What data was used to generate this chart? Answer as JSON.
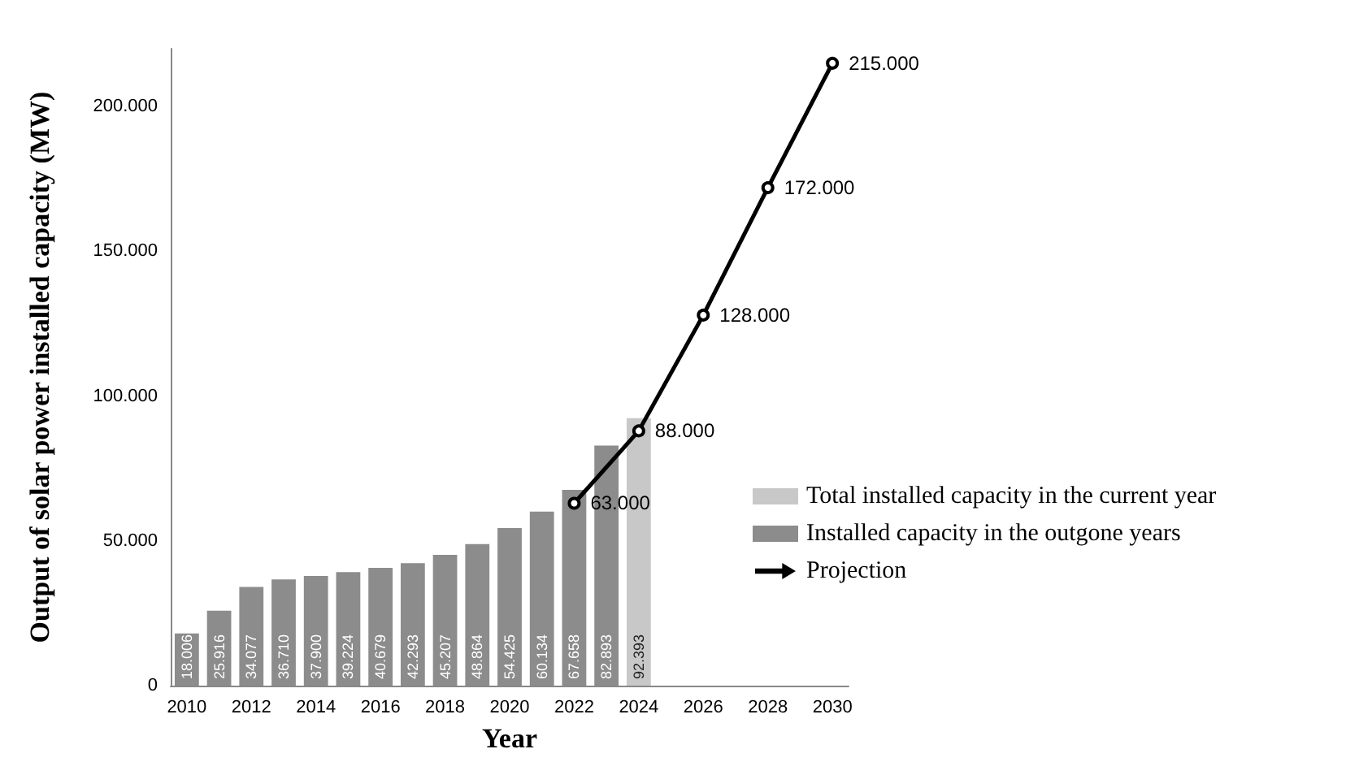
{
  "chart_data": {
    "type": "bar",
    "xlabel": "Year",
    "ylabel": "Output of solar power installed capacity (MW)",
    "categories": [
      "2010",
      null,
      "2012",
      null,
      "2014",
      null,
      "2016",
      null,
      "2018",
      null,
      "2020",
      null,
      "2022",
      null,
      "2024",
      null,
      "2026",
      null,
      "2028",
      null,
      "2030"
    ],
    "series": [
      {
        "name": "Total installed capacity in the current year",
        "color": "#c8c8c8",
        "values": [
          null,
          null,
          null,
          null,
          null,
          null,
          null,
          null,
          null,
          null,
          null,
          null,
          null,
          null,
          92393,
          null,
          null,
          null,
          null,
          null,
          null
        ],
        "value_labels": [
          null,
          null,
          null,
          null,
          null,
          null,
          null,
          null,
          null,
          null,
          null,
          null,
          null,
          null,
          "92.393",
          null,
          null,
          null,
          null,
          null,
          null
        ]
      },
      {
        "name": "Installed capacity in the outgone years",
        "color": "#8c8c8c",
        "values": [
          18006,
          25916,
          34077,
          36710,
          37900,
          39224,
          40679,
          42293,
          45207,
          48864,
          54425,
          60134,
          67658,
          82893,
          null,
          null,
          null,
          null,
          null,
          null,
          null
        ],
        "value_labels": [
          "18.006",
          "25.916",
          "34.077",
          "36.710",
          "37.900",
          "39.224",
          "40.679",
          "42.293",
          "45.207",
          "48.864",
          "54.425",
          "60.134",
          "67.658",
          "82.893",
          null,
          null,
          null,
          null,
          null,
          null,
          null
        ]
      },
      {
        "name": "Projection",
        "type": "line",
        "color": "#000000",
        "values": [
          null,
          null,
          null,
          null,
          null,
          null,
          null,
          null,
          null,
          null,
          null,
          null,
          63000,
          null,
          88000,
          null,
          128000,
          null,
          172000,
          null,
          215000
        ],
        "value_labels": [
          null,
          null,
          null,
          null,
          null,
          null,
          null,
          null,
          null,
          null,
          null,
          null,
          "63.000",
          null,
          "88.000",
          null,
          "128.000",
          null,
          "172.000",
          null,
          "215.000"
        ]
      }
    ],
    "ylim": [
      0,
      220000
    ],
    "yticks": [
      {
        "value": 0,
        "label": "0"
      },
      {
        "value": 50000,
        "label": "50.000"
      },
      {
        "value": 100000,
        "label": "100.000"
      },
      {
        "value": 150000,
        "label": "150.000"
      },
      {
        "value": 200000,
        "label": "200.000"
      }
    ],
    "grid": false,
    "legend": "right",
    "marker": "circle",
    "line_style": "solid"
  }
}
